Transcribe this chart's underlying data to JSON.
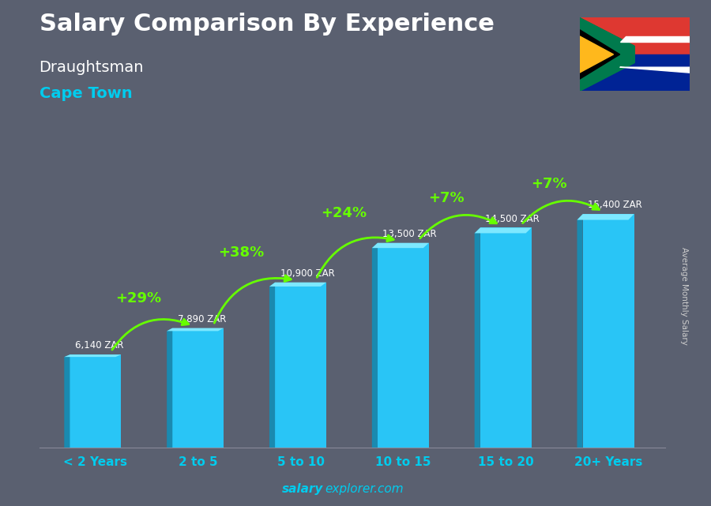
{
  "title": "Salary Comparison By Experience",
  "subtitle1": "Draughtsman",
  "subtitle2": "Cape Town",
  "categories": [
    "< 2 Years",
    "2 to 5",
    "5 to 10",
    "10 to 15",
    "15 to 20",
    "20+ Years"
  ],
  "values": [
    6140,
    7890,
    10900,
    13500,
    14500,
    15400
  ],
  "pct_labels": [
    "+29%",
    "+38%",
    "+24%",
    "+7%",
    "+7%"
  ],
  "value_labels": [
    "6,140 ZAR",
    "7,890 ZAR",
    "10,900 ZAR",
    "13,500 ZAR",
    "14,500 ZAR",
    "15,400 ZAR"
  ],
  "ylabel": "Average Monthly Salary",
  "footer_bold": "salary",
  "footer_normal": "explorer.com",
  "ylim": [
    0,
    20000
  ],
  "bar_front_color": "#29c5f6",
  "bar_side_color": "#1a8ab0",
  "bar_top_color": "#7de8ff",
  "bg_color": "#5a6070",
  "title_color": "#ffffff",
  "subtitle1_color": "#ffffff",
  "subtitle2_color": "#00ccee",
  "pct_color": "#66ff00",
  "value_label_color": "#ffffff",
  "xtick_color": "#00ccee",
  "ylabel_color": "#cccccc",
  "footer_color": "#00ccee"
}
